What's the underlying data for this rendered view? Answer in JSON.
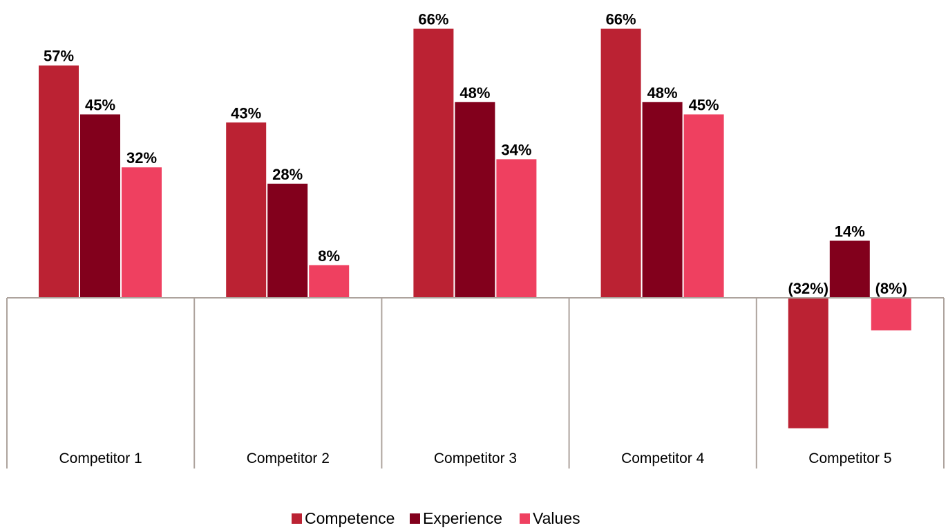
{
  "chart_data": {
    "type": "bar",
    "categories": [
      "Competitor 1",
      "Competitor 2",
      "Competitor 3",
      "Competitor 4",
      "Competitor 5"
    ],
    "series": [
      {
        "name": "Competence",
        "color": "#bb2233",
        "values": [
          57,
          43,
          66,
          66,
          -32
        ],
        "labels": [
          "57%",
          "43%",
          "66%",
          "66%",
          "(32%)"
        ]
      },
      {
        "name": "Experience",
        "color": "#82001c",
        "values": [
          45,
          28,
          48,
          48,
          14
        ],
        "labels": [
          "45%",
          "28%",
          "48%",
          "48%",
          "14%"
        ]
      },
      {
        "name": "Values",
        "color": "#ef4060",
        "values": [
          32,
          8,
          34,
          45,
          -8
        ],
        "labels": [
          "32%",
          "8%",
          "34%",
          "45%",
          "(8%)"
        ]
      }
    ],
    "value_unit": "%",
    "legend_position": "bottom",
    "grid": false,
    "axis_color": "#ada39d"
  }
}
